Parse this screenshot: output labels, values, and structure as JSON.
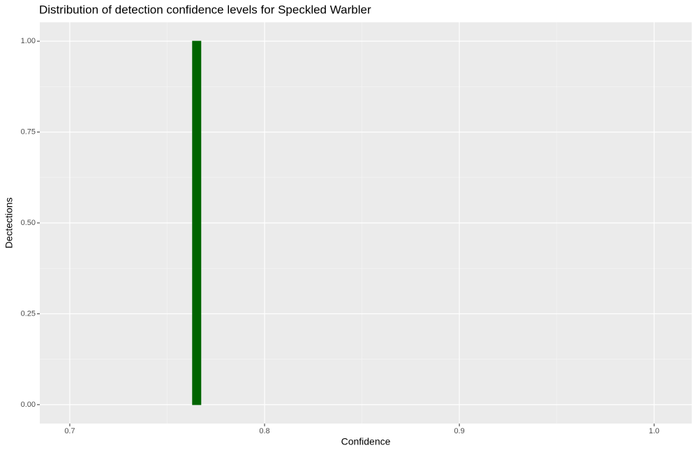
{
  "chart_data": {
    "type": "histogram",
    "title": "Distribution of detection confidence levels for Speckled Warbler",
    "x_label": "Confidence",
    "y_label": "Dectections",
    "bins": [
      0.763,
      0.7673
    ],
    "values": [
      1
    ],
    "color": "#006400",
    "xlim": [
      0.6846,
      1.0193
    ],
    "xticks": [
      0.7,
      0.8,
      0.9,
      {
        "value": 1.0,
        "label": "1.0"
      }
    ],
    "ylim": [
      -0.052,
      1.052
    ],
    "yticks": [
      {
        "value": 0,
        "label": "0.00"
      },
      {
        "value": 0.25,
        "label": "0.25"
      },
      {
        "value": 0.5,
        "label": "0.50"
      },
      {
        "value": 0.75,
        "label": "0.75"
      },
      {
        "value": 1,
        "label": "1.00"
      }
    ],
    "grid": true
  }
}
